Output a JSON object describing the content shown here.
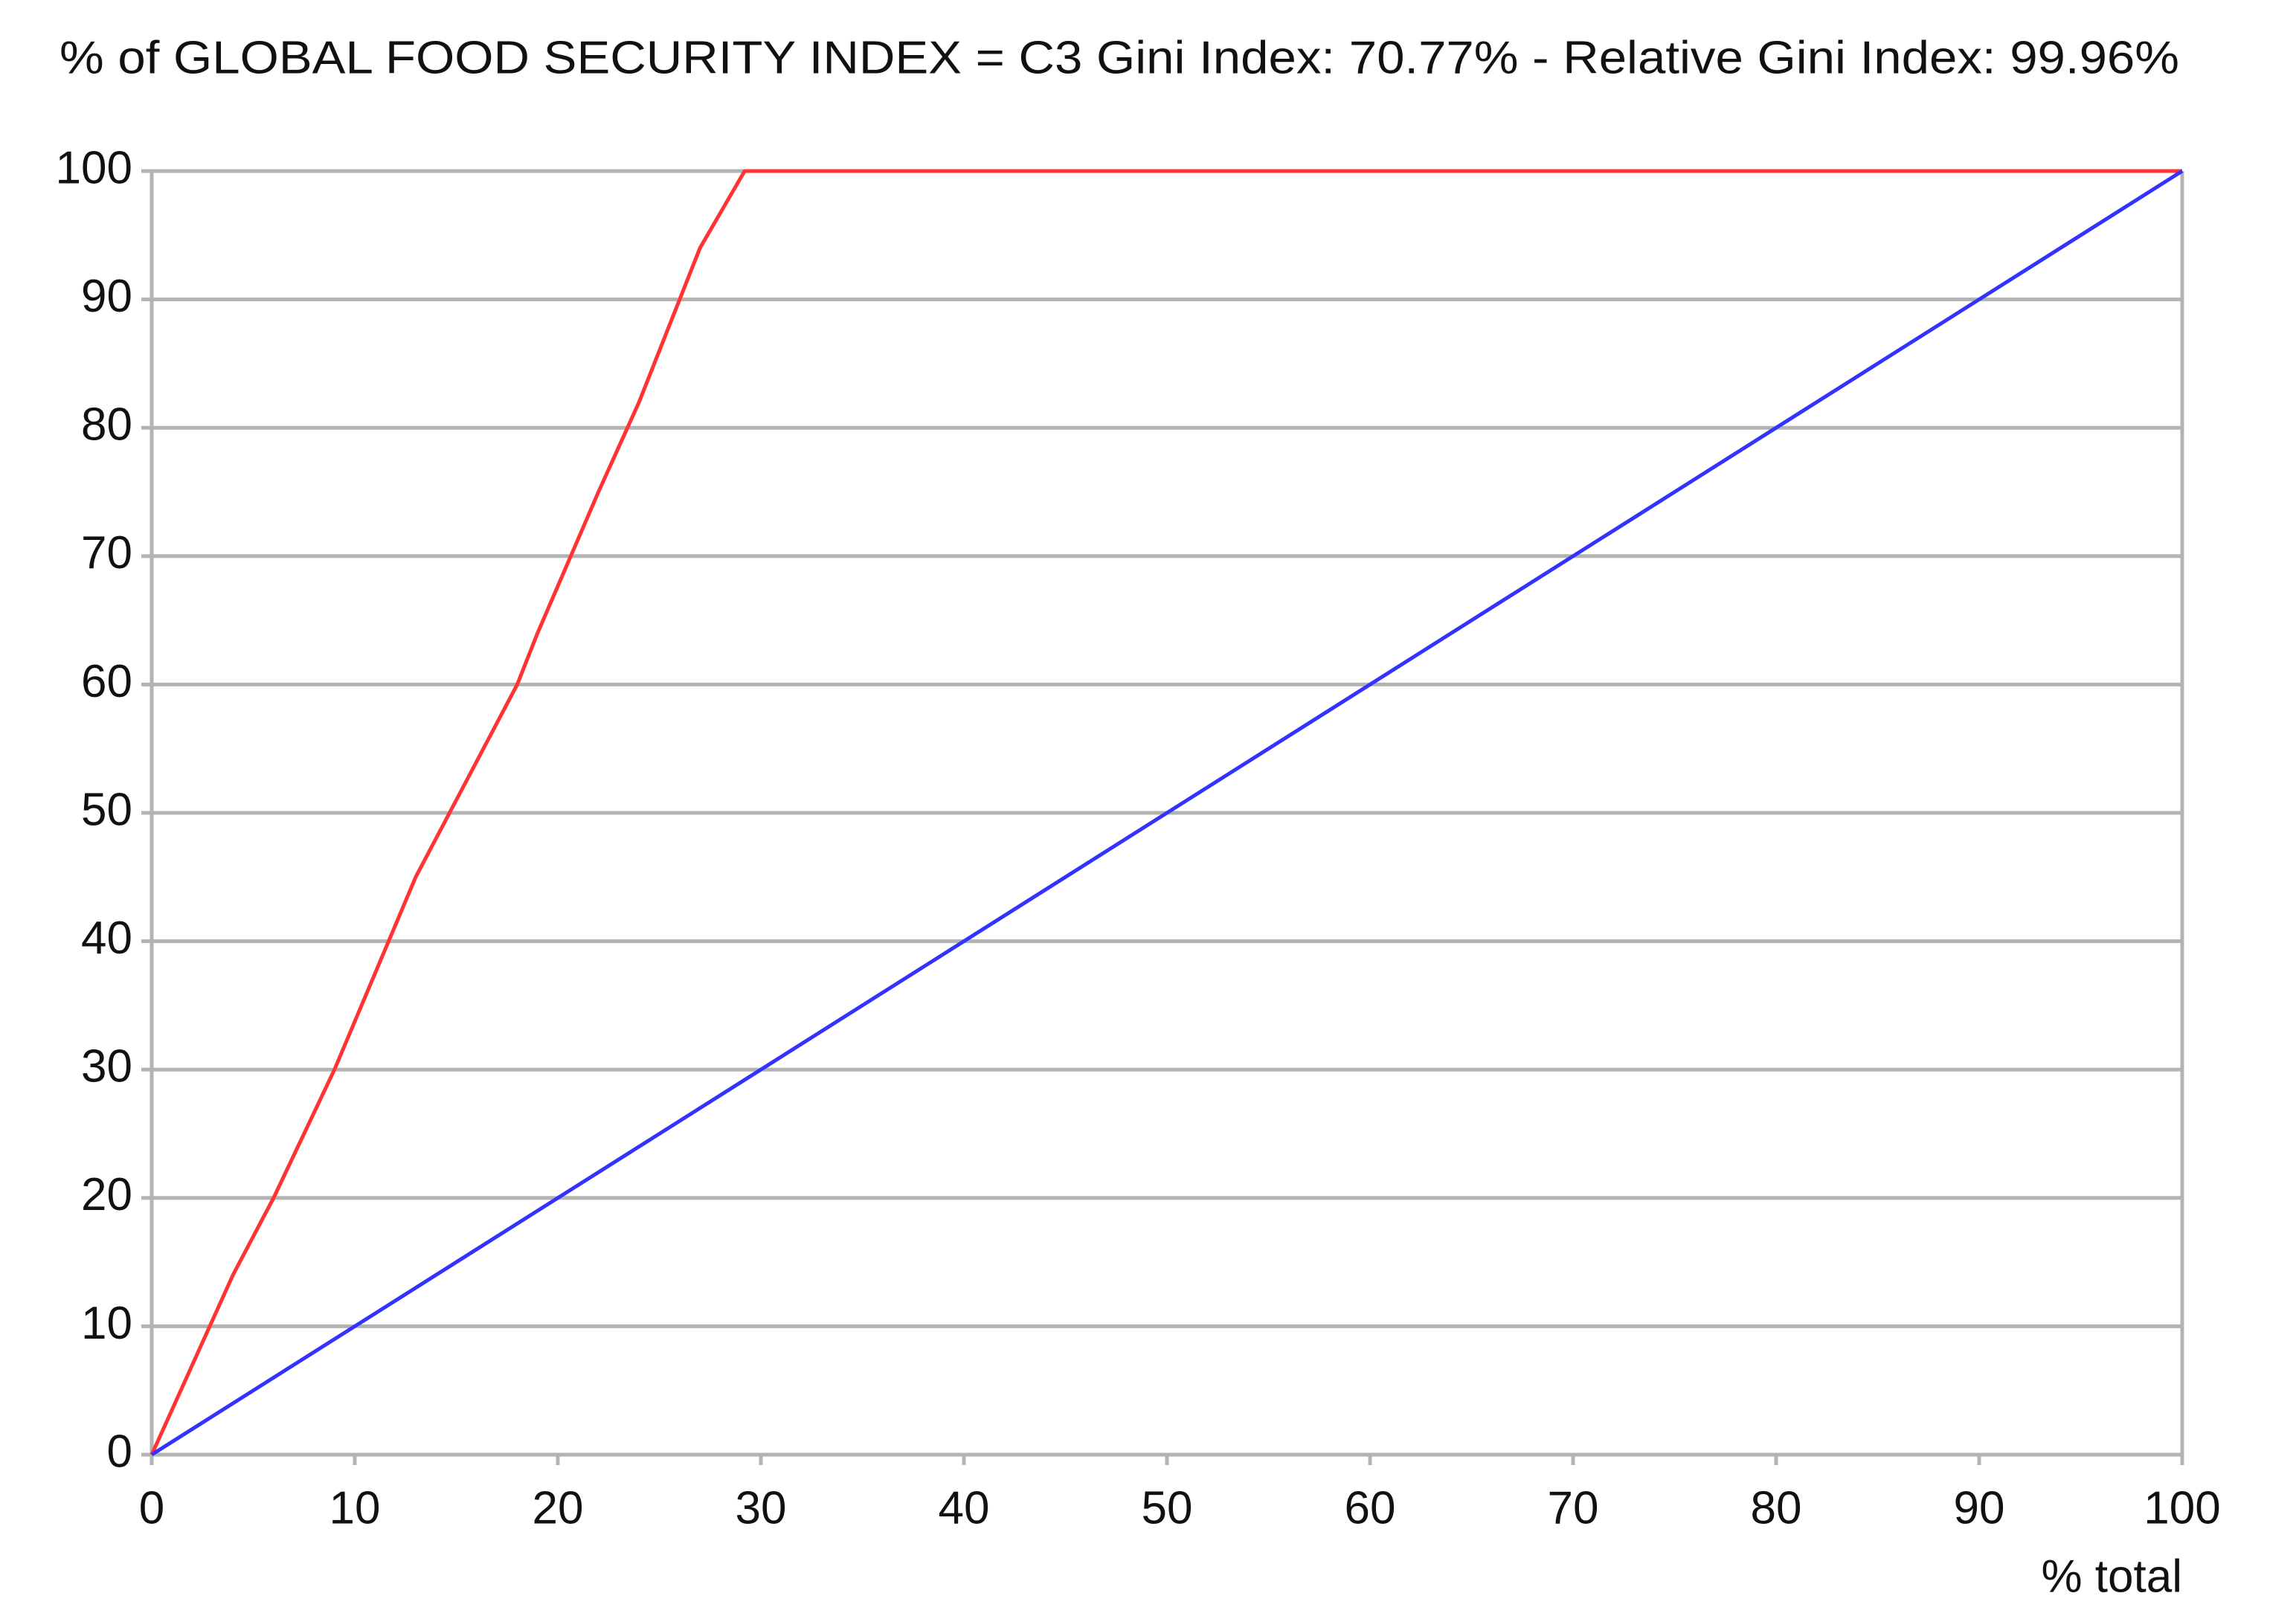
{
  "chart_data": {
    "type": "line",
    "title": "% of GLOBAL FOOD SECURITY INDEX = C3   Gini Index: 70.77% - Relative Gini Index: 99.96%",
    "x_label": "% total",
    "series": [
      {
        "color": "#ff3333",
        "x": [
          0,
          4,
          6,
          9,
          13,
          15,
          18,
          19,
          22,
          24,
          27,
          29.2,
          100
        ],
        "values": [
          0,
          14,
          20,
          30,
          45,
          51,
          60,
          64,
          75,
          82,
          94,
          100,
          100
        ]
      },
      {
        "color": "#3333ff",
        "x": [
          0,
          100
        ],
        "values": [
          0,
          100
        ]
      }
    ],
    "xlim": [
      0,
      100
    ],
    "xticks": [
      0,
      10,
      20,
      30,
      40,
      50,
      60,
      70,
      80,
      90,
      100
    ],
    "ylim": [
      0,
      100
    ],
    "yticks": [
      0,
      10,
      20,
      30,
      40,
      50,
      60,
      70,
      80,
      90,
      100
    ],
    "grid": true
  }
}
